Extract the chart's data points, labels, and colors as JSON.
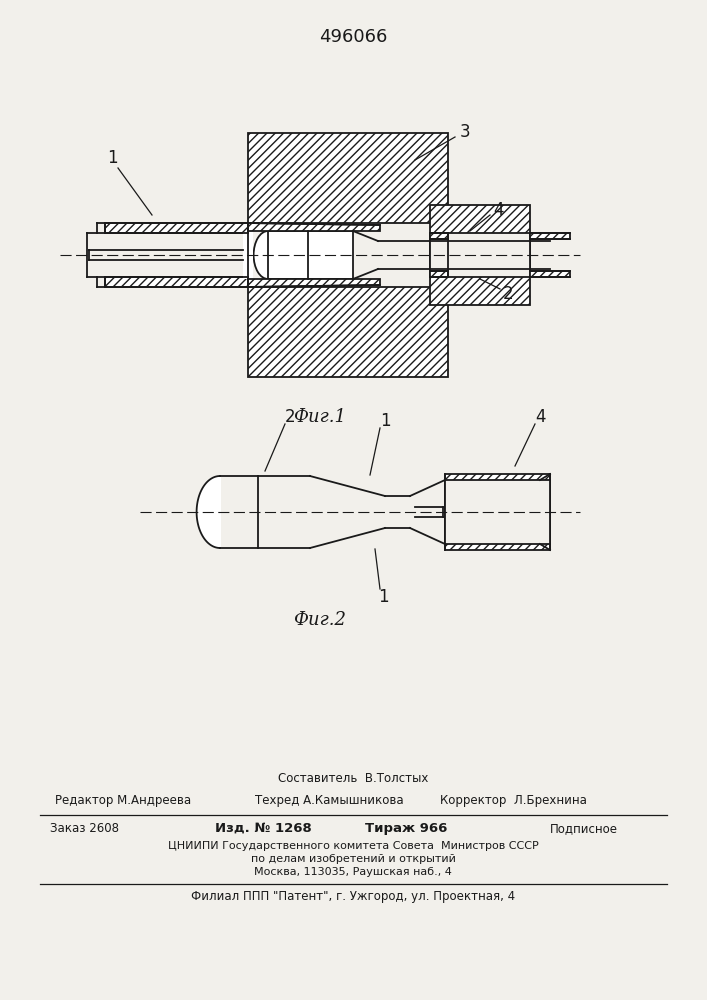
{
  "patent_number": "496066",
  "fig1_label": "Фиг.1",
  "fig2_label": "Фиг.2",
  "bg_color": "#f2f0eb",
  "line_color": "#1a1a1a",
  "footer": {
    "sostavitel": "Составитель",
    "sostavitel_name": "В.Толстых",
    "redaktor_label": "Редактор",
    "redaktor_name": "М.Андреева",
    "tehred_label": "Техред",
    "tehred_name": "А.Камышникова",
    "korrektor_label": "Корректор",
    "korrektor_name": "Л.Брехнина",
    "zakaz_label": "Заказ 2608",
    "izd_label": "Изд. № 1268",
    "tirazh_label": "Тираж 966",
    "podpisnoe": "Подписное",
    "cniiipi": "ЦНИИПИ Государственного комитета Совета  Министров СССР",
    "po_delam": "по делам изобретений и открытий",
    "moskva": "Москва, 113035, Раушская наб., 4",
    "filial": "Филиал ППП \"Патент\", г. Ужгород, ул. Проектная, 4"
  }
}
